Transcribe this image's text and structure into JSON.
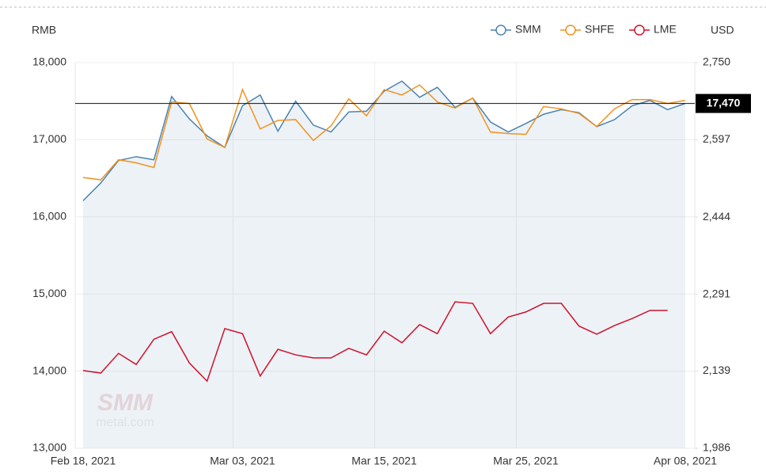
{
  "chart_data": {
    "type": "line",
    "y_label": "RMB",
    "y2_label": "USD",
    "categories": [
      "Feb 18, 2021",
      null,
      null,
      null,
      null,
      null,
      null,
      null,
      null,
      "Mar 03, 2021",
      null,
      null,
      null,
      null,
      null,
      null,
      null,
      "Mar 15, 2021",
      null,
      null,
      null,
      null,
      null,
      null,
      null,
      "Mar 25, 2021",
      null,
      null,
      null,
      null,
      null,
      null,
      null,
      null,
      "Apr 08, 2021"
    ],
    "series": [
      {
        "name": "SMM",
        "color": "#4a83b0",
        "area": true,
        "values": [
          16210,
          16440,
          16730,
          16780,
          16740,
          17560,
          17270,
          17050,
          16900,
          17440,
          17580,
          17110,
          17500,
          17190,
          17100,
          17360,
          17370,
          17630,
          17760,
          17550,
          17680,
          17420,
          17540,
          17230,
          17100,
          17210,
          17330,
          17390,
          17350,
          17170,
          17260,
          17440,
          17510,
          17390,
          17470
        ]
      },
      {
        "name": "SHFE",
        "color": "#f0921e",
        "values": [
          16510,
          16480,
          16740,
          16700,
          16640,
          17490,
          17470,
          17010,
          16900,
          17650,
          17140,
          17250,
          17260,
          16990,
          17180,
          17530,
          17310,
          17650,
          17580,
          17710,
          17490,
          17410,
          17540,
          17100,
          17080,
          17070,
          17430,
          17400,
          17340,
          17170,
          17400,
          17520,
          17520,
          17470,
          17510
        ]
      },
      {
        "name": "LME",
        "color": "#d0112b",
        "axis": "y2",
        "values": [
          2140,
          2135,
          2174,
          2152,
          2202,
          2217,
          2155,
          2119,
          2223,
          2213,
          2129,
          2182,
          2171,
          2165,
          2165,
          2184,
          2171,
          2218,
          2195,
          2231,
          2213,
          2276,
          2273,
          2213,
          2246,
          2256,
          2273,
          2273,
          2228,
          2212,
          2229,
          2243,
          2259,
          2259,
          null
        ]
      }
    ],
    "ylim": [
      13000,
      18000
    ],
    "yticks": [
      {
        "value": 13000,
        "label": "13,000"
      },
      {
        "value": 14000,
        "label": "14,000"
      },
      {
        "value": 15000,
        "label": "15,000"
      },
      {
        "value": 16000,
        "label": "16,000"
      },
      {
        "value": 17000,
        "label": "17,000"
      },
      {
        "value": 18000,
        "label": "18,000"
      }
    ],
    "y2lim": [
      1986,
      2750
    ],
    "y2ticks": [
      {
        "value": 1986,
        "label": "1,986"
      },
      {
        "value": 2139,
        "label": "2,139"
      },
      {
        "value": 2291,
        "label": "2,291"
      },
      {
        "value": 2444,
        "label": "2,444"
      },
      {
        "value": 2597,
        "label": "2,597"
      },
      {
        "value": 2750,
        "label": "2,750"
      }
    ],
    "reference_line": {
      "value": 17470,
      "label": "17,470"
    },
    "watermark": [
      "SMM",
      "metal.com"
    ],
    "grid": true
  }
}
